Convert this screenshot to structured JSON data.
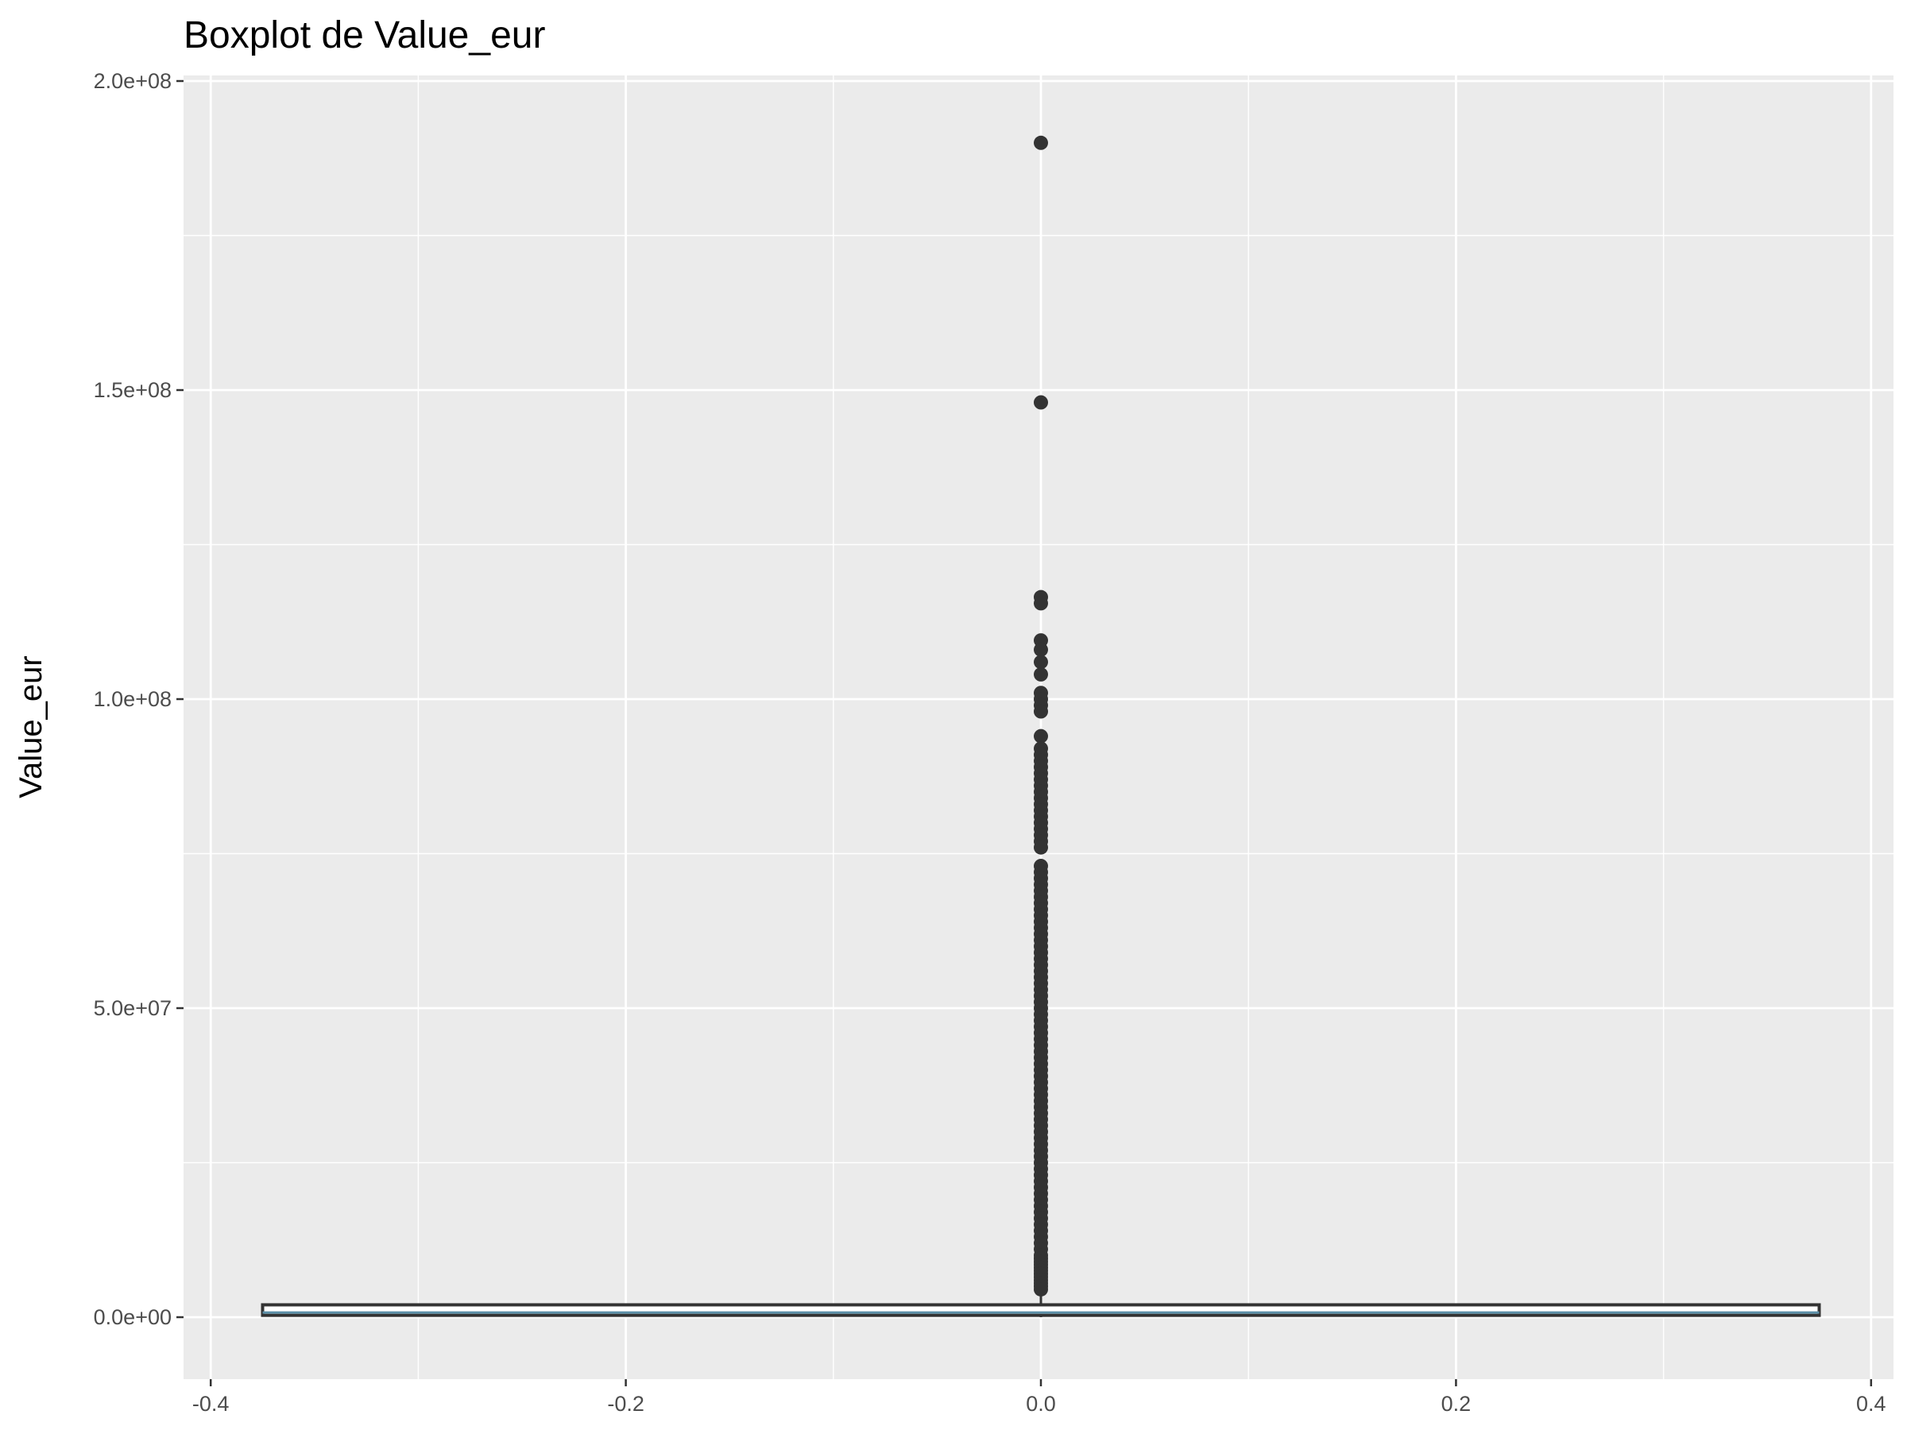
{
  "chart_data": {
    "type": "boxplot",
    "title": "Boxplot de Value_eur",
    "xlabel": "",
    "ylabel": "Value_eur",
    "xlim": [
      -0.4,
      0.4
    ],
    "ylim": [
      0,
      200000000
    ],
    "x_ticks": [
      -0.4,
      -0.2,
      0.0,
      0.2,
      0.4
    ],
    "x_tick_labels": [
      "-0.4",
      "-0.2",
      "0.0",
      "0.2",
      "0.4"
    ],
    "y_ticks": [
      0,
      50000000,
      100000000,
      150000000,
      200000000
    ],
    "y_tick_labels": [
      "0.0e+00",
      "5.0e+07",
      "1.0e+08",
      "1.5e+08",
      "2.0e+08"
    ],
    "grid": true,
    "box": {
      "x": 0.0,
      "x_left": -0.375,
      "x_right": 0.375,
      "q1": 300000,
      "median": 750000,
      "q3": 2000000,
      "whisker_low": 0,
      "whisker_high": 4300000
    },
    "outliers_y": [
      190000000,
      148000000,
      116500000,
      115500000,
      109500000,
      108000000,
      106000000,
      104000000,
      101000000,
      100000000,
      99000000,
      98000000,
      94000000,
      92000000,
      91000000,
      90000000,
      89000000,
      88000000,
      87000000,
      86000000,
      85000000,
      84000000,
      83000000,
      82000000,
      81000000,
      80000000,
      79000000,
      78000000,
      77000000,
      76000000,
      73000000,
      72000000,
      71000000,
      70000000,
      69000000,
      68000000,
      67000000,
      66000000,
      65000000,
      64000000,
      63000000,
      62000000,
      61000000,
      60000000,
      59000000,
      58000000,
      57000000,
      56000000,
      55000000,
      54000000,
      53000000,
      52000000,
      51000000,
      50000000,
      49000000,
      48000000,
      47000000,
      46000000,
      45000000,
      44000000,
      43000000,
      42000000,
      41000000,
      40000000,
      39000000,
      38000000,
      37000000,
      36000000,
      35000000,
      34000000,
      33000000,
      32000000,
      31000000,
      30000000,
      29000000,
      28000000,
      27000000,
      26000000,
      25000000,
      24000000,
      23000000,
      22000000,
      21000000,
      20000000,
      19000000,
      18000000,
      17000000,
      16000000,
      15000000,
      14000000,
      13000000,
      12000000,
      11000000,
      10000000,
      9500000,
      9000000,
      8500000,
      8000000,
      7500000,
      7000000,
      6500000,
      6000000,
      5500000,
      5000000,
      4500000
    ]
  },
  "colors": {
    "panel": "#ebebeb",
    "grid": "#ffffff",
    "ink": "#333333",
    "tick_text": "#4d4d4d",
    "box_fill": "#ffffff",
    "median_line": "#5b8fa8"
  }
}
